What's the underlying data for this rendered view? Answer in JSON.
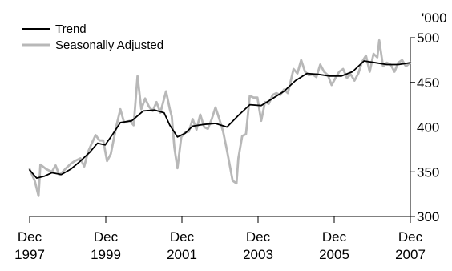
{
  "chart_data": {
    "type": "line",
    "title": "",
    "xlabel": "",
    "ylabel": "'000",
    "ylim": [
      300,
      500
    ],
    "xlim": [
      1997.917,
      2007.917
    ],
    "yticks": [
      300,
      350,
      400,
      450,
      500
    ],
    "xticks": [
      {
        "x": 1997.917,
        "month": "Dec",
        "year": "1997"
      },
      {
        "x": 1999.917,
        "month": "Dec",
        "year": "1999"
      },
      {
        "x": 2001.917,
        "month": "Dec",
        "year": "2001"
      },
      {
        "x": 2003.917,
        "month": "Dec",
        "year": "2003"
      },
      {
        "x": 2005.917,
        "month": "Dec",
        "year": "2005"
      },
      {
        "x": 2007.917,
        "month": "Dec",
        "year": "2007"
      }
    ],
    "grid": false,
    "y_axis_side": "right",
    "legend_position": "top-left",
    "series": [
      {
        "name": "Trend",
        "color": "#000000",
        "points": [
          [
            1997.917,
            352
          ],
          [
            1998.1,
            343
          ],
          [
            1998.3,
            345
          ],
          [
            1998.5,
            349
          ],
          [
            1998.75,
            347
          ],
          [
            1999.0,
            353
          ],
          [
            1999.25,
            362
          ],
          [
            1999.5,
            372
          ],
          [
            1999.7,
            382
          ],
          [
            1999.9,
            380
          ],
          [
            2000.1,
            392
          ],
          [
            2000.3,
            405
          ],
          [
            2000.6,
            407
          ],
          [
            2000.9,
            418
          ],
          [
            2001.2,
            419
          ],
          [
            2001.45,
            416
          ],
          [
            2001.6,
            402
          ],
          [
            2001.8,
            389
          ],
          [
            2002.0,
            393
          ],
          [
            2002.2,
            401
          ],
          [
            2002.5,
            403
          ],
          [
            2002.8,
            404
          ],
          [
            2003.1,
            400
          ],
          [
            2003.4,
            413
          ],
          [
            2003.7,
            425
          ],
          [
            2004.0,
            424
          ],
          [
            2004.3,
            432
          ],
          [
            2004.6,
            440
          ],
          [
            2004.9,
            452
          ],
          [
            2005.2,
            460
          ],
          [
            2005.5,
            459
          ],
          [
            2005.8,
            457
          ],
          [
            2006.1,
            457
          ],
          [
            2006.4,
            462
          ],
          [
            2006.7,
            474
          ],
          [
            2007.0,
            472
          ],
          [
            2007.3,
            470
          ],
          [
            2007.6,
            470
          ],
          [
            2007.917,
            472
          ]
        ]
      },
      {
        "name": "Seasonally Adjusted",
        "color": "#b8b8b8",
        "points": [
          [
            1997.917,
            353
          ],
          [
            1998.05,
            340
          ],
          [
            1998.15,
            323
          ],
          [
            1998.2,
            358
          ],
          [
            1998.35,
            353
          ],
          [
            1998.5,
            350
          ],
          [
            1998.6,
            357
          ],
          [
            1998.7,
            346
          ],
          [
            1998.85,
            353
          ],
          [
            1999.0,
            359
          ],
          [
            1999.1,
            362
          ],
          [
            1999.25,
            365
          ],
          [
            1999.35,
            356
          ],
          [
            1999.45,
            372
          ],
          [
            1999.55,
            382
          ],
          [
            1999.65,
            391
          ],
          [
            1999.75,
            385
          ],
          [
            1999.85,
            385
          ],
          [
            1999.95,
            362
          ],
          [
            2000.05,
            370
          ],
          [
            2000.2,
            402
          ],
          [
            2000.3,
            420
          ],
          [
            2000.4,
            405
          ],
          [
            2000.55,
            407
          ],
          [
            2000.65,
            402
          ],
          [
            2000.75,
            457
          ],
          [
            2000.85,
            420
          ],
          [
            2000.95,
            432
          ],
          [
            2001.05,
            423
          ],
          [
            2001.15,
            418
          ],
          [
            2001.25,
            428
          ],
          [
            2001.35,
            416
          ],
          [
            2001.5,
            440
          ],
          [
            2001.6,
            420
          ],
          [
            2001.65,
            412
          ],
          [
            2001.72,
            377
          ],
          [
            2001.8,
            354
          ],
          [
            2001.9,
            389
          ],
          [
            2002.0,
            394
          ],
          [
            2002.1,
            395
          ],
          [
            2002.2,
            409
          ],
          [
            2002.3,
            397
          ],
          [
            2002.4,
            414
          ],
          [
            2002.5,
            400
          ],
          [
            2002.6,
            398
          ],
          [
            2002.7,
            409
          ],
          [
            2002.8,
            422
          ],
          [
            2002.9,
            409
          ],
          [
            2003.0,
            395
          ],
          [
            2003.1,
            374
          ],
          [
            2003.25,
            340
          ],
          [
            2003.35,
            337
          ],
          [
            2003.4,
            365
          ],
          [
            2003.5,
            390
          ],
          [
            2003.6,
            392
          ],
          [
            2003.7,
            435
          ],
          [
            2003.8,
            433
          ],
          [
            2003.9,
            433
          ],
          [
            2004.0,
            407
          ],
          [
            2004.1,
            428
          ],
          [
            2004.2,
            426
          ],
          [
            2004.3,
            436
          ],
          [
            2004.4,
            438
          ],
          [
            2004.5,
            436
          ],
          [
            2004.6,
            442
          ],
          [
            2004.7,
            438
          ],
          [
            2004.85,
            465
          ],
          [
            2004.95,
            460
          ],
          [
            2005.05,
            475
          ],
          [
            2005.15,
            462
          ],
          [
            2005.25,
            458
          ],
          [
            2005.35,
            459
          ],
          [
            2005.45,
            456
          ],
          [
            2005.55,
            470
          ],
          [
            2005.65,
            462
          ],
          [
            2005.75,
            458
          ],
          [
            2005.85,
            447
          ],
          [
            2005.95,
            455
          ],
          [
            2006.05,
            462
          ],
          [
            2006.15,
            465
          ],
          [
            2006.25,
            455
          ],
          [
            2006.35,
            459
          ],
          [
            2006.45,
            452
          ],
          [
            2006.55,
            460
          ],
          [
            2006.65,
            473
          ],
          [
            2006.75,
            480
          ],
          [
            2006.85,
            462
          ],
          [
            2006.95,
            482
          ],
          [
            2007.05,
            478
          ],
          [
            2007.1,
            497
          ],
          [
            2007.2,
            468
          ],
          [
            2007.3,
            472
          ],
          [
            2007.4,
            470
          ],
          [
            2007.5,
            462
          ],
          [
            2007.6,
            472
          ],
          [
            2007.7,
            475
          ],
          [
            2007.8,
            468
          ],
          [
            2007.917,
            472
          ]
        ]
      }
    ]
  }
}
